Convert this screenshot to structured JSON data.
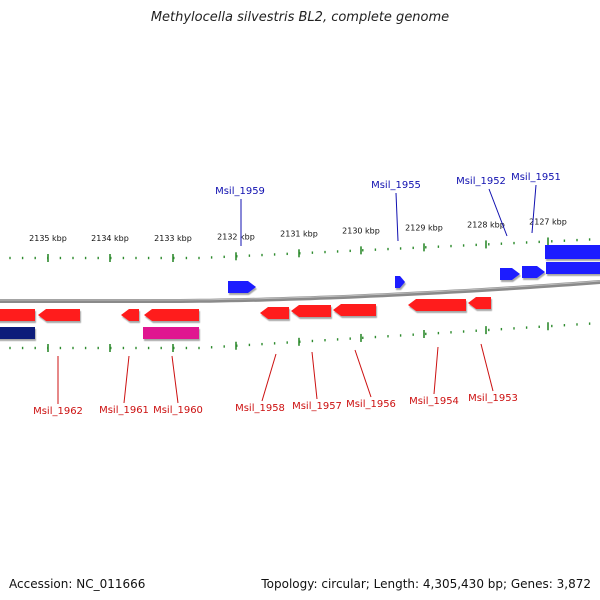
{
  "title": "Methylocella silvestris BL2, complete genome",
  "footer": {
    "accession": "Accession: NC_011666",
    "summary": "Topology: circular; Length: 4,305,430 bp; Genes: 3,872"
  },
  "colors": {
    "backbone": "#8a8a8a",
    "tick": "#2e8b2e",
    "forward_gene": "#1a1aff",
    "reverse_gene": "#ff1a1a",
    "dark_gene": "#0a1a7a",
    "pink_gene": "#e01890",
    "forward_label": "#1010b0",
    "reverse_label": "#cc1010"
  },
  "scale": {
    "unit": "kbp",
    "labels": [
      "2135 kbp",
      "2134 kbp",
      "2133 kbp",
      "2132 kbp",
      "2131 kbp",
      "2130 kbp",
      "2129 kbp",
      "2128 kbp",
      "2127 kbp"
    ]
  },
  "genes_forward": [
    {
      "label": "Msil_1959"
    },
    {
      "label": "Msil_1955"
    },
    {
      "label": "Msil_1952"
    },
    {
      "label": "Msil_1951"
    }
  ],
  "genes_reverse": [
    {
      "label": "Msil_1962"
    },
    {
      "label": "Msil_1961"
    },
    {
      "label": "Msil_1960"
    },
    {
      "label": "Msil_1958"
    },
    {
      "label": "Msil_1957"
    },
    {
      "label": "Msil_1956"
    },
    {
      "label": "Msil_1954"
    },
    {
      "label": "Msil_1953"
    }
  ]
}
